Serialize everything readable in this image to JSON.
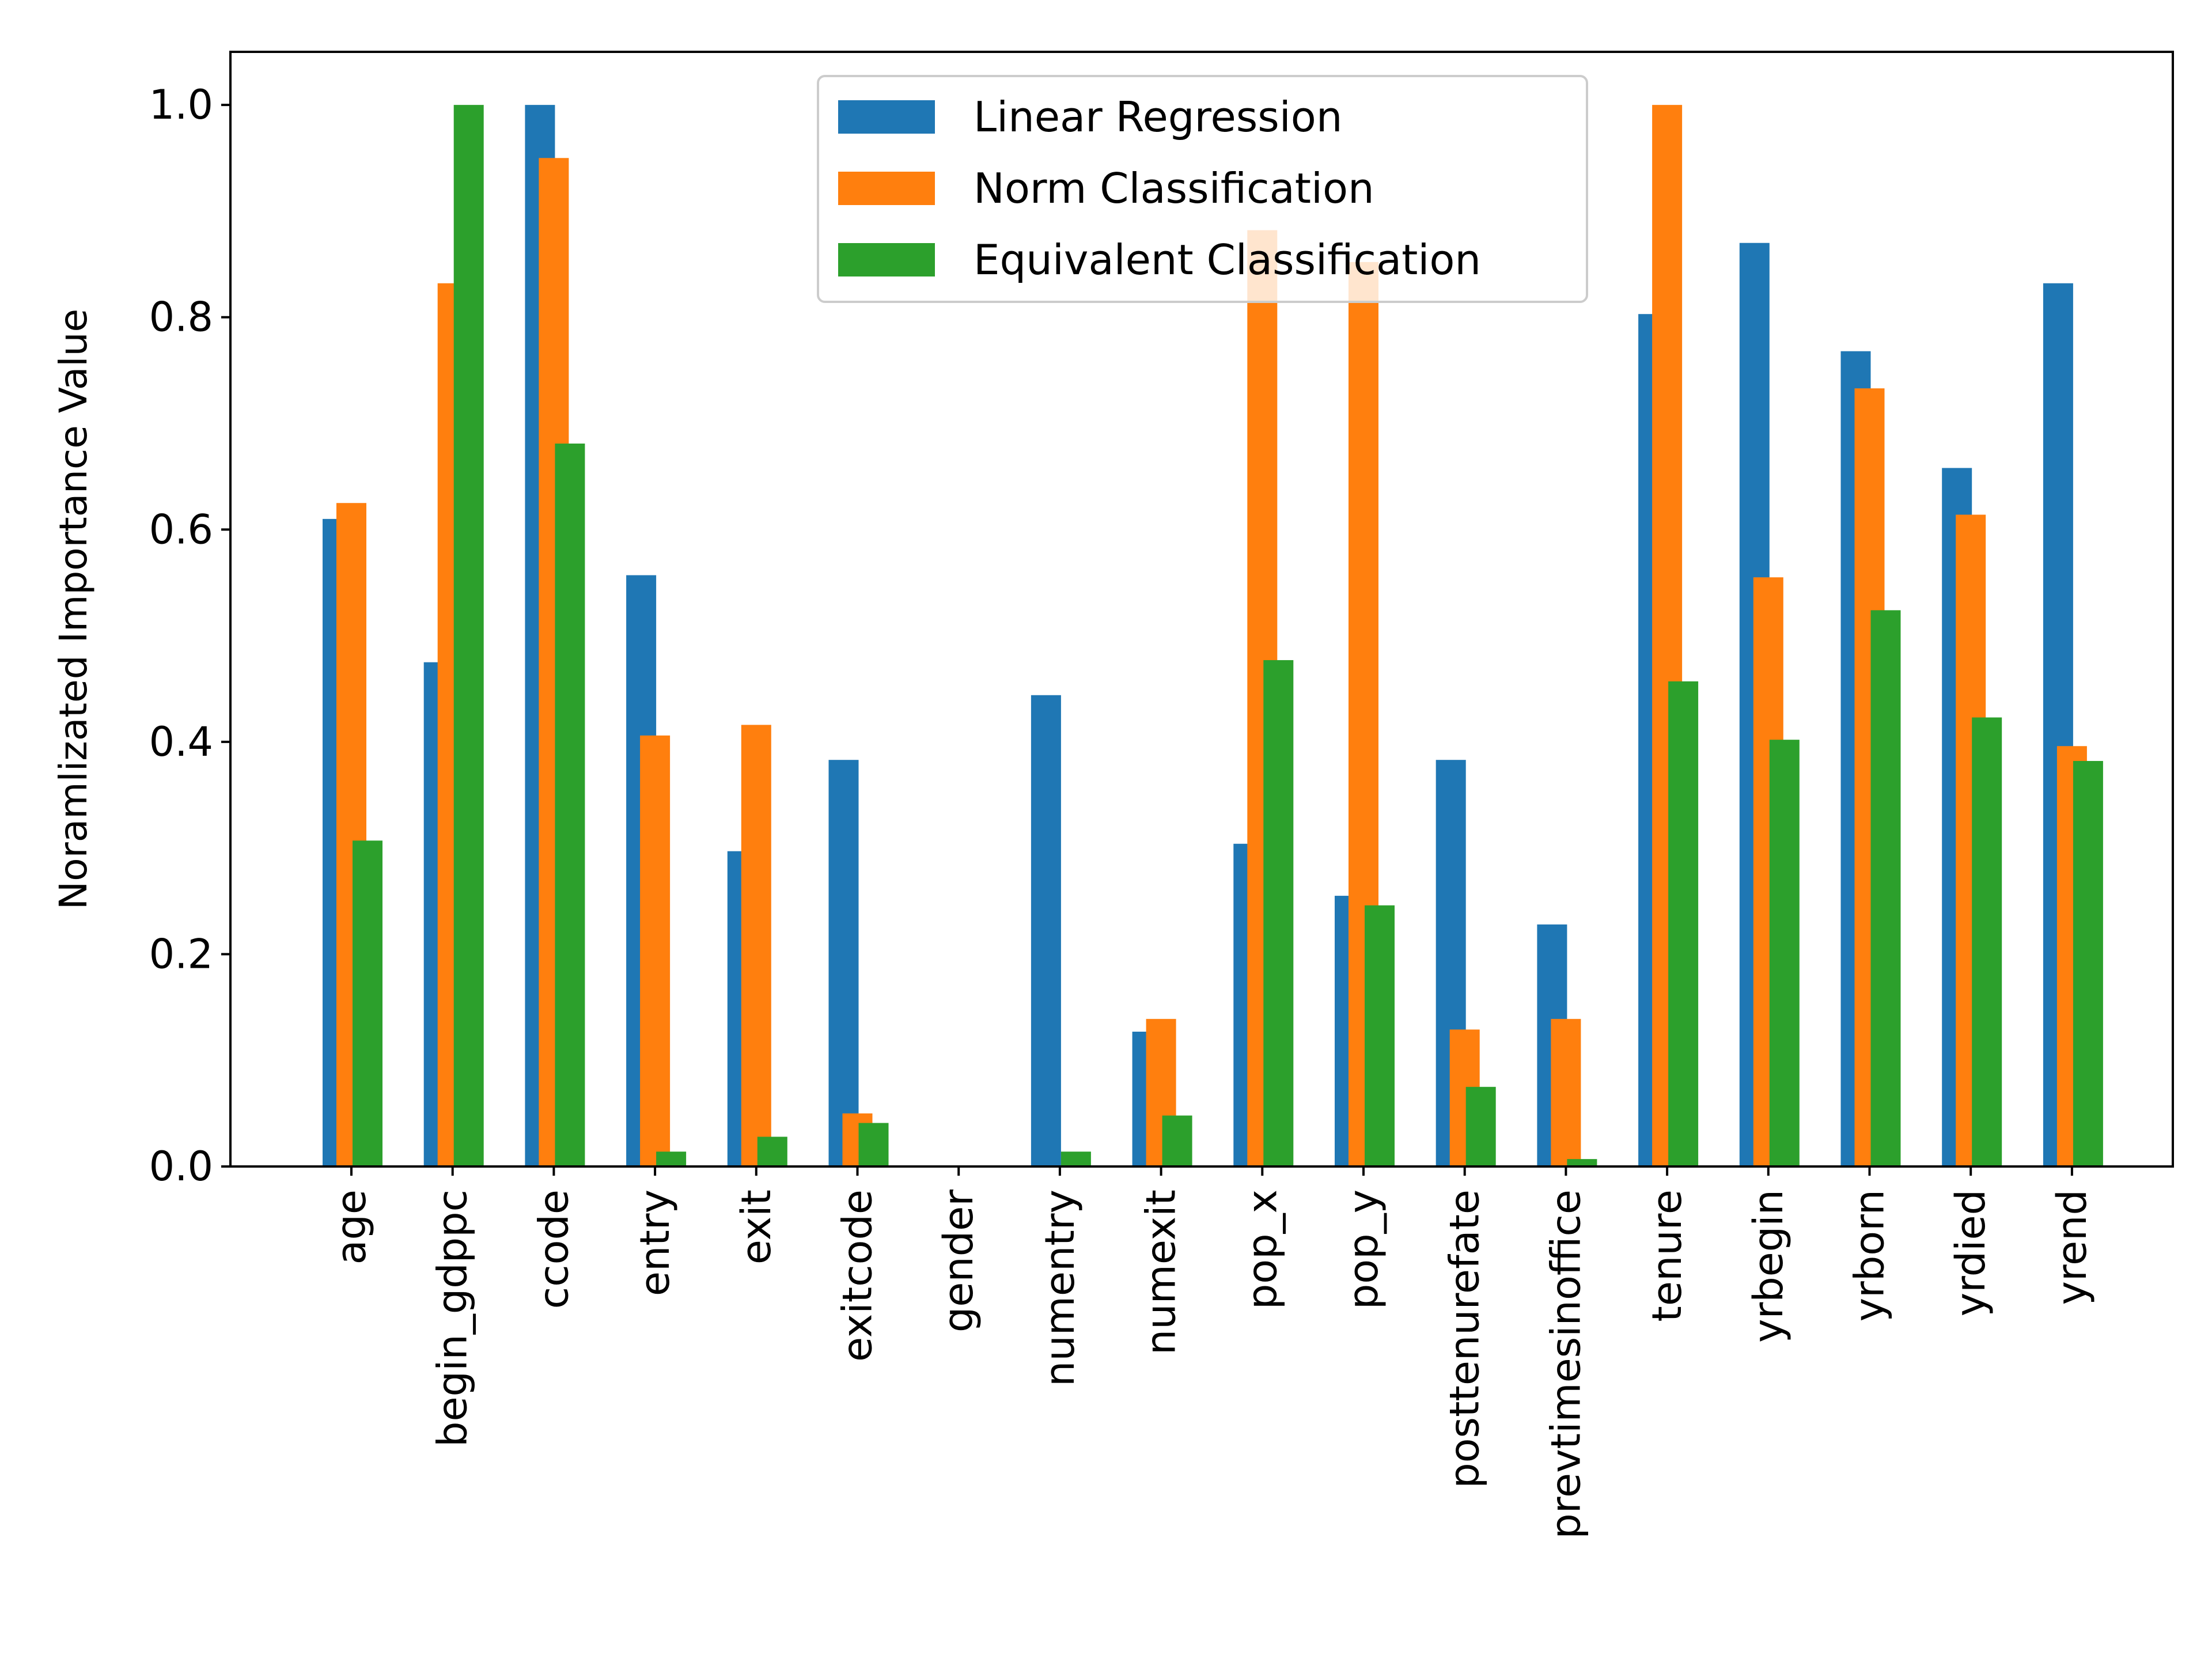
{
  "chart_data": {
    "type": "bar",
    "title": "",
    "xlabel": "",
    "ylabel": "Noramlizated Importance Value",
    "ylim": [
      0,
      1.05
    ],
    "yticks": [
      "0.0",
      "0.2",
      "0.4",
      "0.6",
      "0.8",
      "1.0"
    ],
    "grid": false,
    "legend_position": "top-center",
    "categories": [
      "age",
      "begin_gdppc",
      "ccode",
      "entry",
      "exit",
      "exitcode",
      "gender",
      "numentry",
      "numexit",
      "pop_x",
      "pop_y",
      "posttenurefate",
      "prevtimesinoffice",
      "tenure",
      "yrbegin",
      "yrborn",
      "yrdied",
      "yrend"
    ],
    "series": [
      {
        "name": "Linear Regression",
        "color": "#1f77b4",
        "values": [
          0.61,
          0.475,
          1.0,
          0.557,
          0.297,
          0.383,
          0.0,
          0.444,
          0.127,
          0.304,
          0.255,
          0.383,
          0.228,
          0.803,
          0.87,
          0.768,
          0.658,
          0.832
        ]
      },
      {
        "name": "Norm Classification",
        "color": "#ff7f0e",
        "values": [
          0.625,
          0.832,
          0.95,
          0.406,
          0.416,
          0.05,
          0.0,
          0.0,
          0.139,
          0.882,
          0.852,
          0.129,
          0.139,
          1.0,
          0.555,
          0.733,
          0.614,
          0.396
        ]
      },
      {
        "name": "Equivalent Classification",
        "color": "#2ca02c",
        "values": [
          0.307,
          1.0,
          0.681,
          0.014,
          0.028,
          0.041,
          0.0,
          0.014,
          0.048,
          0.477,
          0.246,
          0.075,
          0.007,
          0.457,
          0.402,
          0.524,
          0.423,
          0.382
        ]
      }
    ]
  }
}
